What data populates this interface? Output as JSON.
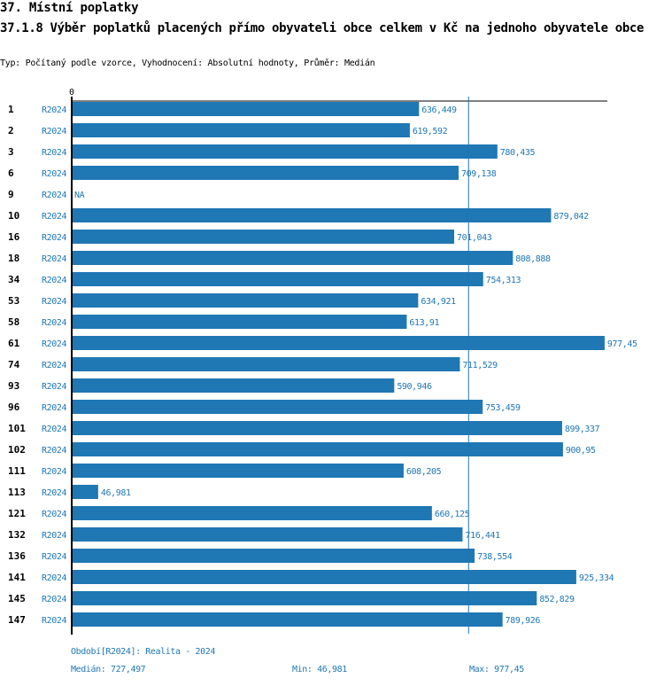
{
  "header": {
    "section_title": "37. Místní poplatky",
    "indicator_title": "37.1.8 Výběr poplatků placených přímo obyvateli obce celkem  v Kč na jednoho obyvatele obce",
    "subtitle": "Typ: Počítaný podle vzorce, Vyhodnocení: Absolutní hodnoty, Průměr: Medián"
  },
  "colors": {
    "bar": "#1f77b4",
    "axis": "#000000",
    "median_line": "#1f77b4",
    "text_accent": "#1f77b4"
  },
  "chart_data": {
    "type": "bar",
    "orientation": "horizontal",
    "title": "37.1.8 Výběr poplatků placených přímo obyvateli obce celkem  v Kč na jednoho obyvatele obce",
    "xlabel": "",
    "ylabel": "",
    "x_tick_labels": [
      "0"
    ],
    "xlim": [
      0,
      1000
    ],
    "grid": false,
    "legend": "none",
    "reference_line": {
      "name": "Medián",
      "value": 727.497
    },
    "categories": [
      "1",
      "2",
      "3",
      "6",
      "9",
      "10",
      "16",
      "18",
      "34",
      "53",
      "58",
      "61",
      "74",
      "93",
      "96",
      "101",
      "102",
      "111",
      "113",
      "121",
      "132",
      "136",
      "141",
      "145",
      "147"
    ],
    "period_labels": [
      "R2024",
      "R2024",
      "R2024",
      "R2024",
      "R2024",
      "R2024",
      "R2024",
      "R2024",
      "R2024",
      "R2024",
      "R2024",
      "R2024",
      "R2024",
      "R2024",
      "R2024",
      "R2024",
      "R2024",
      "R2024",
      "R2024",
      "R2024",
      "R2024",
      "R2024",
      "R2024",
      "R2024",
      "R2024"
    ],
    "values": [
      636.449,
      619.592,
      780.435,
      709.138,
      null,
      879.042,
      701.043,
      808.888,
      754.313,
      634.921,
      613.91,
      977.45,
      711.529,
      590.946,
      753.459,
      899.337,
      900.95,
      608.205,
      46.981,
      660.125,
      716.441,
      738.554,
      925.334,
      852.829,
      789.926
    ],
    "value_labels": [
      "636,449",
      "619,592",
      "780,435",
      "709,138",
      "NA",
      "879,042",
      "701,043",
      "808,888",
      "754,313",
      "634,921",
      "613,91",
      "977,45",
      "711,529",
      "590,946",
      "753,459",
      "899,337",
      "900,95",
      "608,205",
      "46,981",
      "660,125",
      "716,441",
      "738,554",
      "925,334",
      "852,829",
      "789,926"
    ]
  },
  "footer": {
    "period_legend": "Období[R2024]: Realita - 2024",
    "median": "Medián: 727,497",
    "min": "Min: 46,981",
    "max": "Max: 977,45"
  }
}
